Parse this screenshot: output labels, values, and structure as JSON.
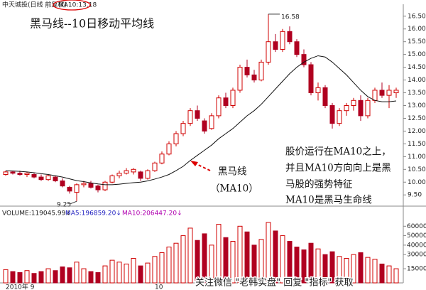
{
  "chart_data": {
    "type": "candlestick",
    "header": "中天城投(日线 前复权)",
    "ma_label": "MA10:13.18",
    "title": "黑马线--10日移动平均线",
    "annotations": [
      "黑马线",
      "（MA10）",
      "股价运行在MA10之上，",
      "并且MA10方向向上是黑",
      "马股的强势特征",
      "MA10是黑马生命线"
    ],
    "volume_header": [
      "VOLUME:119045.99↓",
      "MA5:196859.20↓",
      "MA10:206447.20↓"
    ],
    "watermark": "关注微信 \"老韩实盘\" 回复 \"指标\" 获取",
    "xlabels": [
      {
        "index": 0,
        "label": "2010年  9"
      },
      {
        "index": 21,
        "label": "10"
      }
    ],
    "ohlc": [
      [
        10.3,
        10.45,
        10.25,
        10.4
      ],
      [
        10.4,
        10.45,
        10.3,
        10.35
      ],
      [
        10.35,
        10.45,
        10.25,
        10.3
      ],
      [
        10.3,
        10.4,
        10.2,
        10.35
      ],
      [
        10.3,
        10.35,
        10.15,
        10.2
      ],
      [
        10.2,
        10.3,
        10.05,
        10.1
      ],
      [
        10.1,
        10.3,
        10.05,
        10.25
      ],
      [
        10.2,
        10.25,
        10.0,
        10.05
      ],
      [
        10.05,
        10.15,
        9.8,
        9.85
      ],
      [
        9.8,
        9.85,
        9.55,
        9.65
      ],
      [
        9.6,
        9.95,
        9.25,
        9.9
      ],
      [
        9.9,
        10.05,
        9.8,
        9.95
      ],
      [
        9.95,
        10.05,
        9.75,
        9.8
      ],
      [
        9.85,
        9.9,
        9.6,
        9.7
      ],
      [
        9.7,
        10.05,
        9.65,
        10.0
      ],
      [
        10.0,
        10.3,
        9.95,
        10.25
      ],
      [
        10.25,
        10.45,
        10.15,
        10.35
      ],
      [
        10.35,
        10.55,
        10.3,
        10.45
      ],
      [
        10.4,
        10.55,
        10.3,
        10.5
      ],
      [
        10.4,
        10.45,
        10.05,
        10.15
      ],
      [
        10.15,
        10.5,
        10.1,
        10.45
      ],
      [
        10.45,
        10.8,
        10.4,
        10.75
      ],
      [
        10.75,
        11.2,
        10.7,
        11.1
      ],
      [
        11.1,
        11.6,
        11.05,
        11.5
      ],
      [
        11.5,
        12.0,
        11.4,
        11.9
      ],
      [
        11.9,
        12.4,
        11.8,
        12.3
      ],
      [
        12.3,
        12.9,
        12.2,
        12.8
      ],
      [
        12.8,
        13.0,
        12.4,
        12.5
      ],
      [
        12.4,
        12.5,
        11.9,
        12.0
      ],
      [
        12.1,
        12.7,
        12.05,
        12.6
      ],
      [
        12.6,
        13.4,
        12.5,
        13.3
      ],
      [
        13.3,
        13.5,
        12.9,
        13.0
      ],
      [
        13.0,
        13.7,
        12.9,
        13.6
      ],
      [
        13.6,
        14.6,
        13.5,
        14.5
      ],
      [
        14.5,
        14.8,
        14.1,
        14.2
      ],
      [
        14.2,
        14.4,
        13.9,
        14.0
      ],
      [
        14.0,
        14.8,
        13.95,
        14.7
      ],
      [
        14.7,
        16.58,
        14.6,
        15.5
      ],
      [
        15.5,
        15.8,
        15.1,
        15.2
      ],
      [
        15.2,
        16.0,
        15.1,
        15.9
      ],
      [
        15.9,
        16.1,
        15.4,
        15.5
      ],
      [
        15.5,
        15.6,
        14.9,
        15.0
      ],
      [
        15.0,
        15.2,
        14.5,
        14.6
      ],
      [
        14.6,
        14.7,
        13.4,
        13.5
      ],
      [
        13.5,
        13.9,
        13.2,
        13.7
      ],
      [
        13.7,
        13.8,
        12.9,
        13.0
      ],
      [
        13.0,
        13.1,
        12.1,
        12.3
      ],
      [
        12.3,
        12.9,
        12.2,
        12.8
      ],
      [
        12.8,
        13.1,
        12.6,
        13.0
      ],
      [
        13.0,
        13.3,
        12.8,
        13.2
      ],
      [
        13.2,
        13.4,
        12.4,
        12.6
      ],
      [
        12.6,
        13.3,
        12.5,
        13.2
      ],
      [
        13.2,
        13.7,
        13.1,
        13.6
      ],
      [
        13.6,
        13.9,
        13.3,
        13.4
      ],
      [
        13.4,
        13.8,
        12.9,
        13.6
      ],
      [
        13.5,
        13.7,
        13.3,
        13.6
      ]
    ],
    "ma10": [
      10.45,
      10.44,
      10.42,
      10.4,
      10.37,
      10.33,
      10.3,
      10.25,
      10.2,
      10.13,
      10.06,
      10.02,
      9.97,
      9.93,
      9.9,
      9.9,
      9.92,
      9.95,
      9.98,
      10.0,
      10.05,
      10.12,
      10.2,
      10.3,
      10.45,
      10.62,
      10.85,
      11.05,
      11.25,
      11.45,
      11.7,
      11.9,
      12.1,
      12.35,
      12.6,
      12.8,
      13.05,
      13.35,
      13.65,
      13.95,
      14.25,
      14.5,
      14.7,
      14.85,
      14.95,
      14.9,
      14.7,
      14.45,
      14.2,
      13.9,
      13.6,
      13.35,
      13.2,
      13.15,
      13.15,
      13.18
    ],
    "ma_color": "#111111",
    "up_color": "#d00000",
    "down_color": "#b00020",
    "high_label_index": 37,
    "low_label_index": 10,
    "ylim": [
      9.2,
      16.8
    ],
    "yticks": [
      {
        "value": 9.5,
        "label": "9.50"
      },
      {
        "value": 10,
        "label": "10.00"
      },
      {
        "value": 10.5,
        "label": "10.50"
      },
      {
        "value": 11,
        "label": "11.00"
      },
      {
        "value": 11.5,
        "label": "11.50"
      },
      {
        "value": 12,
        "label": "12.00"
      },
      {
        "value": 12.5,
        "label": "12.50"
      },
      {
        "value": 13,
        "label": "13.00"
      },
      {
        "value": 13.5,
        "label": "13.50"
      },
      {
        "value": 14,
        "label": "14.00"
      },
      {
        "value": 14.5,
        "label": "14.50"
      },
      {
        "value": 15,
        "label": "15.00"
      },
      {
        "value": 15.5,
        "label": "15.50"
      },
      {
        "value": 16,
        "label": "16.00"
      },
      {
        "value": 16.5,
        "label": "16.50"
      }
    ],
    "volume": [
      14000,
      12000,
      11000,
      13000,
      10000,
      12000,
      15000,
      13000,
      17000,
      16000,
      22000,
      15000,
      12000,
      11000,
      18000,
      24000,
      22000,
      20000,
      26000,
      18000,
      21000,
      28000,
      32000,
      38000,
      42000,
      50000,
      58000,
      45000,
      52000,
      40000,
      62000,
      48000,
      44000,
      60000,
      54000,
      40000,
      46000,
      64000,
      55000,
      50000,
      44000,
      38000,
      35000,
      42000,
      36000,
      30000,
      33000,
      28000,
      26000,
      30000,
      32000,
      27000,
      25000,
      20000,
      18000,
      15000
    ],
    "vlim": [
      0,
      70000
    ],
    "vticks": [
      15000,
      30000,
      40000,
      50000,
      60000
    ]
  }
}
